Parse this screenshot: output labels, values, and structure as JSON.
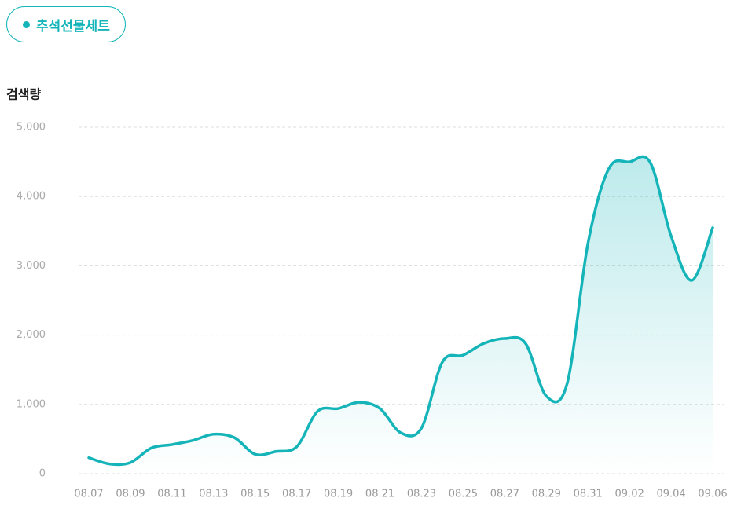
{
  "badge": "추석선물세트",
  "chart_data": {
    "type": "area",
    "y_label": "검색량",
    "categories": [
      "08.07",
      null,
      "08.09",
      null,
      "08.11",
      null,
      "08.13",
      null,
      "08.15",
      null,
      "08.17",
      null,
      "08.19",
      null,
      "08.21",
      null,
      "08.23",
      null,
      "08.25",
      null,
      "08.27",
      null,
      "08.29",
      null,
      "08.31",
      null,
      "09.02",
      null,
      "09.04",
      null,
      "09.06"
    ],
    "values": [
      230,
      140,
      160,
      370,
      420,
      480,
      570,
      520,
      280,
      320,
      390,
      900,
      940,
      1030,
      940,
      590,
      660,
      1610,
      1710,
      1880,
      1950,
      1880,
      1120,
      1300,
      3320,
      4400,
      4500,
      4490,
      3430,
      2790,
      3550
    ],
    "color": "#14b4b9",
    "ylim": [
      0,
      5000
    ],
    "yticks": [
      0,
      {
        "value": 1000,
        "label": "1,000"
      },
      {
        "value": 2000,
        "label": "2,000"
      },
      {
        "value": 3000,
        "label": "3,000"
      },
      {
        "value": 4000,
        "label": "4,000"
      },
      {
        "value": 5000,
        "label": "5,000"
      }
    ],
    "grid": true
  }
}
